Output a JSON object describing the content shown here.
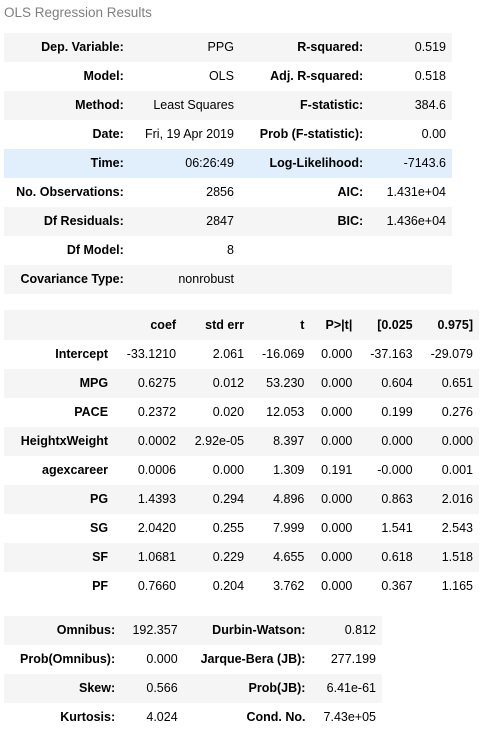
{
  "caption": "OLS Regression Results",
  "summary": {
    "rows": [
      {
        "l1": "Dep. Variable:",
        "v1": "PPG",
        "l2": "R-squared:",
        "v2": "0.519"
      },
      {
        "l1": "Model:",
        "v1": "OLS",
        "l2": "Adj. R-squared:",
        "v2": "0.518"
      },
      {
        "l1": "Method:",
        "v1": "Least Squares",
        "l2": "F-statistic:",
        "v2": "384.6"
      },
      {
        "l1": "Date:",
        "v1": "Fri, 19 Apr 2019",
        "l2": "Prob (F-statistic):",
        "v2": "0.00"
      },
      {
        "l1": "Time:",
        "v1": "06:26:49",
        "l2": "Log-Likelihood:",
        "v2": "-7143.6"
      },
      {
        "l1": "No. Observations:",
        "v1": "2856",
        "l2": "AIC:",
        "v2": "1.431e+04"
      },
      {
        "l1": "Df Residuals:",
        "v1": "2847",
        "l2": "BIC:",
        "v2": "1.436e+04"
      },
      {
        "l1": "Df Model:",
        "v1": "8",
        "l2": "",
        "v2": ""
      },
      {
        "l1": "Covariance Type:",
        "v1": "nonrobust",
        "l2": "",
        "v2": ""
      }
    ]
  },
  "coefficients": {
    "headers": [
      "",
      "coef",
      "std err",
      "t",
      "P>|t|",
      "[0.025",
      "0.975]"
    ],
    "rows": [
      [
        "Intercept",
        "-33.1210",
        "2.061",
        "-16.069",
        "0.000",
        "-37.163",
        "-29.079"
      ],
      [
        "MPG",
        "0.6275",
        "0.012",
        "53.230",
        "0.000",
        "0.604",
        "0.651"
      ],
      [
        "PACE",
        "0.2372",
        "0.020",
        "12.053",
        "0.000",
        "0.199",
        "0.276"
      ],
      [
        "HeightxWeight",
        "0.0002",
        "2.92e-05",
        "8.397",
        "0.000",
        "0.000",
        "0.000"
      ],
      [
        "agexcareer",
        "0.0006",
        "0.000",
        "1.309",
        "0.191",
        "-0.000",
        "0.001"
      ],
      [
        "PG",
        "1.4393",
        "0.294",
        "4.896",
        "0.000",
        "0.863",
        "2.016"
      ],
      [
        "SG",
        "2.0420",
        "0.255",
        "7.999",
        "0.000",
        "1.541",
        "2.543"
      ],
      [
        "SF",
        "1.0681",
        "0.229",
        "4.655",
        "0.000",
        "0.618",
        "1.518"
      ],
      [
        "PF",
        "0.7660",
        "0.204",
        "3.762",
        "0.000",
        "0.367",
        "1.165"
      ]
    ]
  },
  "diagnostics": {
    "rows": [
      {
        "l1": "Omnibus:",
        "v1": "192.357",
        "l2": "Durbin-Watson:",
        "v2": "0.812"
      },
      {
        "l1": "Prob(Omnibus):",
        "v1": "0.000",
        "l2": "Jarque-Bera (JB):",
        "v2": "277.199"
      },
      {
        "l1": "Skew:",
        "v1": "0.566",
        "l2": "Prob(JB):",
        "v2": "6.41e-61"
      },
      {
        "l1": "Kurtosis:",
        "v1": "4.024",
        "l2": "Cond. No.",
        "v2": "7.43e+05"
      }
    ]
  },
  "colors": {
    "caption": "#7f7f7f",
    "stripe": "#f5f5f5",
    "hover_row": "#e1eefb"
  }
}
